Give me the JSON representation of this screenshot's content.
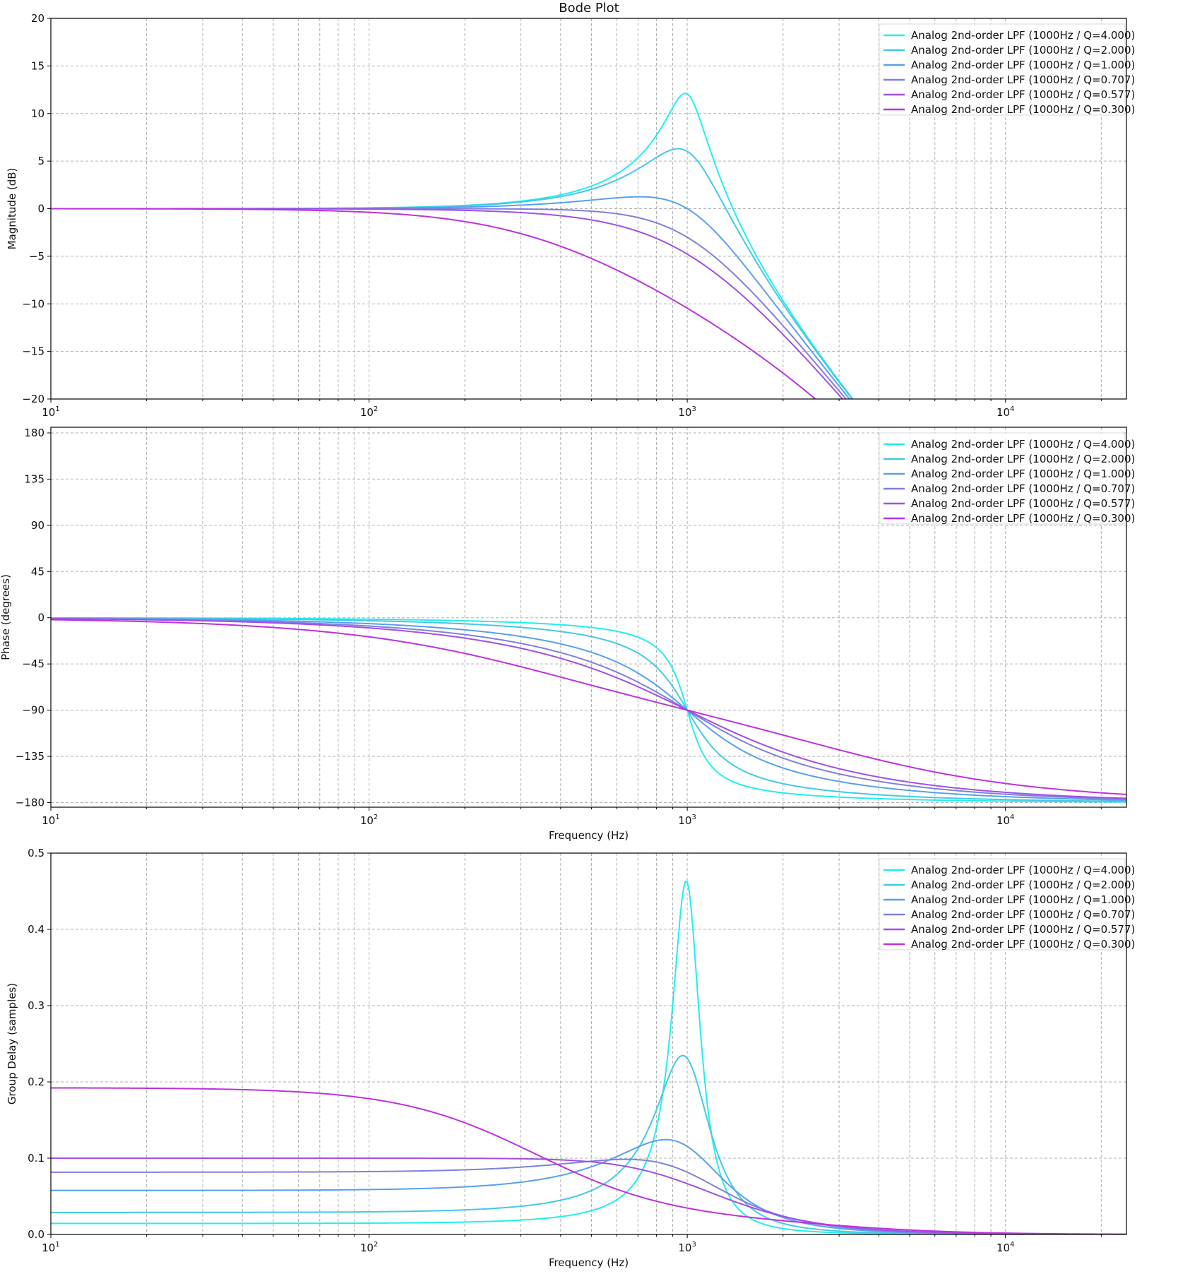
{
  "chart_data": {
    "type": "line",
    "title": "Bode Plot",
    "x_scale": "log",
    "xlim": [
      10,
      24000
    ],
    "x_tick_labels": [
      {
        "base": "10",
        "exp": "1",
        "value": 10
      },
      {
        "base": "10",
        "exp": "2",
        "value": 100
      },
      {
        "base": "10",
        "exp": "3",
        "value": 1000
      },
      {
        "base": "10",
        "exp": "4",
        "value": 10000
      }
    ],
    "grid": true,
    "legend_placement": "top-right",
    "filter": {
      "type": "Analog 2nd-order low-pass",
      "fc_hz": 1000,
      "group_delay_scale": 0.0577
    },
    "series": [
      {
        "name": "Analog 2nd-order LPF (1000Hz / Q=4.000)",
        "Q": 4.0,
        "color": "#22eeee"
      },
      {
        "name": "Analog 2nd-order LPF (1000Hz / Q=2.000)",
        "Q": 2.0,
        "color": "#44c8e8"
      },
      {
        "name": "Analog 2nd-order LPF (1000Hz / Q=1.000)",
        "Q": 1.0,
        "color": "#58a0ec"
      },
      {
        "name": "Analog 2nd-order LPF (1000Hz / Q=0.707)",
        "Q": 0.707,
        "color": "#8080dc"
      },
      {
        "name": "Analog 2nd-order LPF (1000Hz / Q=0.577)",
        "Q": 0.577,
        "color": "#a050e4"
      },
      {
        "name": "Analog 2nd-order LPF (1000Hz / Q=0.300)",
        "Q": 0.3,
        "color": "#bb33dd"
      }
    ],
    "panels": [
      {
        "id": "magnitude",
        "ylabel": "Magnitude (dB)",
        "xlabel": "",
        "ylim": [
          -20,
          20
        ],
        "yticks": [
          -20,
          -15,
          -10,
          -5,
          0,
          5,
          10,
          15,
          20
        ],
        "ytick_labels": [
          "−20",
          "−15",
          "−10",
          "−5",
          "0",
          "5",
          "10",
          "15",
          "20"
        ],
        "key_values": {
          "peak_db": {
            "Q=4.000": 12.0,
            "Q=2.000": 6.3,
            "Q=1.000": 1.25
          }
        }
      },
      {
        "id": "phase",
        "ylabel": "Phase (degrees)",
        "xlabel": "Frequency (Hz)",
        "ylim": [
          -184.5,
          185.5
        ],
        "yticks": [
          -180,
          -135,
          -90,
          -45,
          0,
          45,
          90,
          135,
          180
        ],
        "ytick_labels": [
          "−180",
          "−135",
          "−90",
          "−45",
          "0",
          "45",
          "90",
          "135",
          "180"
        ],
        "key_values": {
          "phase_at_fc_deg": -90
        }
      },
      {
        "id": "group_delay",
        "ylabel": "Group Delay (samples)",
        "xlabel": "Frequency (Hz)",
        "ylim": [
          0,
          0.5
        ],
        "yticks": [
          0,
          0.1,
          0.2,
          0.3,
          0.4,
          0.5
        ],
        "ytick_labels": [
          "0.0",
          "0.1",
          "0.2",
          "0.3",
          "0.4",
          "0.5"
        ],
        "key_values": {
          "dc_delay": {
            "Q=4.000": 0.014,
            "Q=2.000": 0.029,
            "Q=1.000": 0.058,
            "Q=0.707": 0.082,
            "Q=0.577": 0.1,
            "Q=0.300": 0.192
          },
          "peak_delay": {
            "Q=4.000": 0.46,
            "Q=2.000": 0.233,
            "Q=1.000": 0.124
          }
        }
      }
    ]
  }
}
